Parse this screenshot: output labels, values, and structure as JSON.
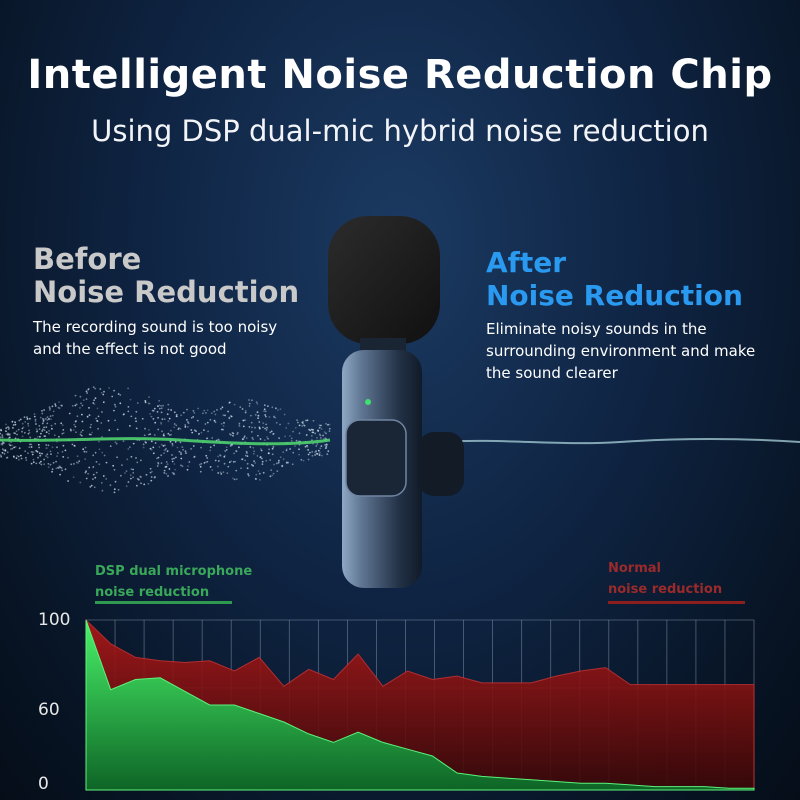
{
  "header": {
    "title": "Intelligent Noise Reduction Chip",
    "subtitle": "Using DSP dual-mic hybrid noise reduction"
  },
  "before": {
    "line1": "Before",
    "line2": "Noise Reduction",
    "desc_line1": "The recording sound is too noisy",
    "desc_line2": "and the effect is not good"
  },
  "after": {
    "line1": "After",
    "line2": "Noise Reduction",
    "desc_line1": "Eliminate noisy sounds in the",
    "desc_line2": "surrounding environment and make",
    "desc_line3": "the sound clearer"
  },
  "legend": {
    "green_line1": "DSP dual microphone",
    "green_line2": "noise reduction",
    "red_line1": "Normal",
    "red_line2": "noise reduction"
  },
  "colors": {
    "green": "#2fd85a",
    "red": "#8c1e1e",
    "accent_blue": "#2a9af0"
  },
  "chart_data": {
    "type": "area",
    "yticks": [
      "100",
      "60",
      "0"
    ],
    "series": [
      {
        "name": "Normal noise reduction",
        "values": [
          100,
          86,
          78,
          76,
          75,
          76,
          70,
          78,
          61,
          71,
          65,
          80,
          61,
          70,
          65,
          67,
          63,
          63,
          63,
          67,
          70,
          72,
          62,
          62,
          62,
          62,
          62,
          62
        ]
      },
      {
        "name": "DSP dual microphone noise reduction",
        "values": [
          100,
          59,
          65,
          66,
          58,
          50,
          50,
          45,
          40,
          33,
          28,
          34,
          28,
          24,
          20,
          10,
          8,
          7,
          6,
          5,
          4,
          4,
          3,
          2,
          2,
          2,
          1,
          1
        ]
      }
    ]
  }
}
